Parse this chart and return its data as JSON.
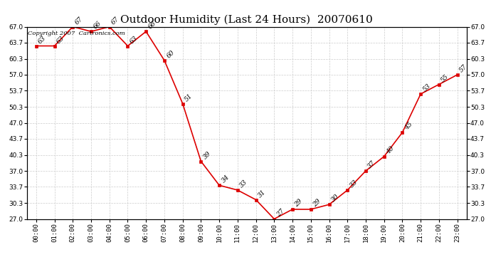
{
  "title": "Outdoor Humidity (Last 24 Hours)  20070610",
  "copyright": "Copyright 2007  Cartronics.com",
  "hours": [
    0,
    1,
    2,
    3,
    4,
    5,
    6,
    7,
    8,
    9,
    10,
    11,
    12,
    13,
    14,
    15,
    16,
    17,
    18,
    19,
    20,
    21,
    22,
    23
  ],
  "values": [
    63,
    63,
    67,
    66,
    67,
    63,
    66,
    60,
    51,
    39,
    34,
    33,
    31,
    27,
    29,
    29,
    30,
    33,
    37,
    40,
    45,
    53,
    55,
    57
  ],
  "yticks": [
    27.0,
    30.3,
    33.7,
    37.0,
    40.3,
    43.7,
    47.0,
    50.3,
    53.7,
    57.0,
    60.3,
    63.7,
    67.0
  ],
  "ylim": [
    27.0,
    67.0
  ],
  "line_color": "#dd0000",
  "marker_color": "#dd0000",
  "bg_color": "#ffffff",
  "grid_color": "#cccccc",
  "title_fontsize": 11,
  "tick_fontsize": 6.5,
  "copyright_fontsize": 6,
  "annotation_fontsize": 6.5
}
